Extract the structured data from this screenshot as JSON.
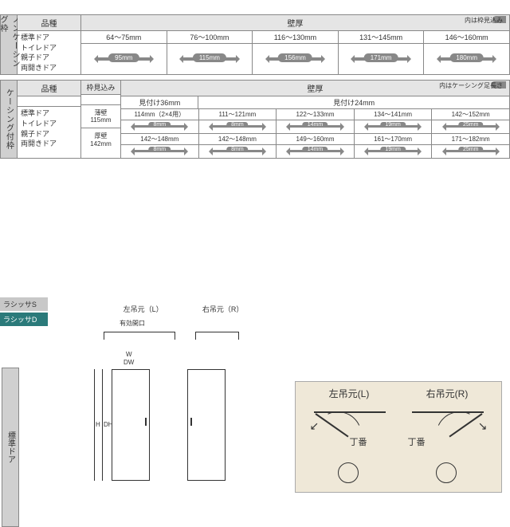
{
  "table1": {
    "vlabel": "ノンケーシング枠",
    "type_header": "品種",
    "types": [
      "標準ドア",
      "トイレドア",
      "親子ドア",
      "両開きドア"
    ],
    "wall_header": "壁厚",
    "badge": "内は枠見込み",
    "cols": [
      {
        "range": "64～75mm",
        "arrow": "95mm"
      },
      {
        "range": "76～100mm",
        "arrow": "115mm"
      },
      {
        "range": "116～130mm",
        "arrow": "156mm"
      },
      {
        "range": "131～145mm",
        "arrow": "171mm"
      },
      {
        "range": "146～160mm",
        "arrow": "180mm"
      }
    ]
  },
  "table2": {
    "vlabel": "ケーシング付枠",
    "type_header": "品種",
    "frame_header": "枠見込み",
    "types": [
      "標準ドア",
      "トイレドア",
      "親子ドア",
      "両開きドア"
    ],
    "wall_header": "壁厚",
    "badge": "内はケーシング足長さ",
    "sub": {
      "left": "見付け36mm",
      "right": "見付け24mm"
    },
    "frames": [
      {
        "label1": "薄壁",
        "label2": "115mm"
      },
      {
        "label1": "厚壁",
        "label2": "142mm"
      }
    ],
    "rows": [
      {
        "vals": [
          "114mm（2×4用）",
          "111～121mm",
          "122～133mm",
          "134～141mm",
          "142～152mm"
        ]
      },
      {
        "arrows": [
          "8mm",
          "8mm",
          "14mm",
          "19mm",
          "25mm"
        ]
      },
      {
        "vals": [
          "142～148mm",
          "142～148mm",
          "149～160mm",
          "161～170mm",
          "171～182mm"
        ]
      },
      {
        "arrows": [
          "8mm",
          "8mm",
          "14mm",
          "19mm",
          "25mm"
        ]
      }
    ]
  },
  "bottom": {
    "tag_s": "ラシッサS",
    "tag_d": "ラシッサD",
    "vlabel": "標準ドア",
    "left_label": "左吊元（L）",
    "right_label": "右吊元（R）",
    "eff_opening": "有効開口",
    "dims": {
      "W": "W",
      "DW": "DW",
      "H": "H",
      "DH": "DH"
    }
  },
  "hinge": {
    "left_title": "左吊元(L)",
    "right_title": "右吊元(R)",
    "hinge_label": "丁番"
  },
  "colors": {
    "gray": "#888888",
    "tab_bg": "#d0d0d0",
    "head_bg": "#e5e5e5",
    "tag_d_bg": "#2b7a7a",
    "hinge_bg": "#efe8d8"
  }
}
